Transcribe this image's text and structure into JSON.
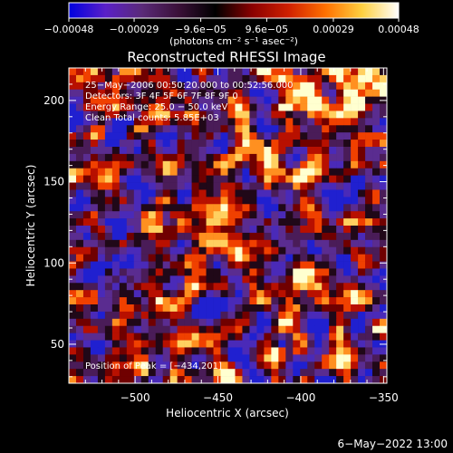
{
  "chart_data": {
    "type": "heatmap",
    "title": "Reconstructed RHESSI Image",
    "xlabel": "Heliocentric X (arcsec)",
    "ylabel": "Heliocentric Y (arcsec)",
    "xlim": [
      -540,
      -348
    ],
    "ylim": [
      26,
      220
    ],
    "x_ticks": [
      -500,
      -450,
      -400,
      -350
    ],
    "x_tick_labels": [
      "−500",
      "−450",
      "−400",
      "−350"
    ],
    "y_ticks": [
      50,
      100,
      150,
      200
    ],
    "y_tick_labels": [
      "50",
      "100",
      "150",
      "200"
    ],
    "colorbar": {
      "range": [
        -0.00048,
        0.00048
      ],
      "ticks": [
        -0.00048,
        -0.00029,
        -9.6e-05,
        9.6e-05,
        0.00029,
        0.00048
      ],
      "tick_labels": [
        "−0.00048",
        "−0.00029",
        "−9.6e−05",
        "9.6e−05",
        "0.00029",
        "0.00048"
      ],
      "units_label": "(photons cm⁻² s⁻¹ asec⁻²)",
      "colors": [
        "#0000e0",
        "#5a20c8",
        "#5a2a78",
        "#3a1038",
        "#000000",
        "#8a0000",
        "#d02000",
        "#ff7000",
        "#ffd040",
        "#ffffff"
      ]
    },
    "annotations": [
      "25−May−2006 00:50:20.000 to 00:52:56.000",
      "Detectors: 3F 4F 5F 6F 7F 8F  9F 0",
      "Energy Range: 25.0 − 50.0 keV",
      "Clean    Total counts: 5.85E+03",
      "Position of Peak = [−434,201]"
    ],
    "footer_date": "6−May−2022 13:00"
  }
}
